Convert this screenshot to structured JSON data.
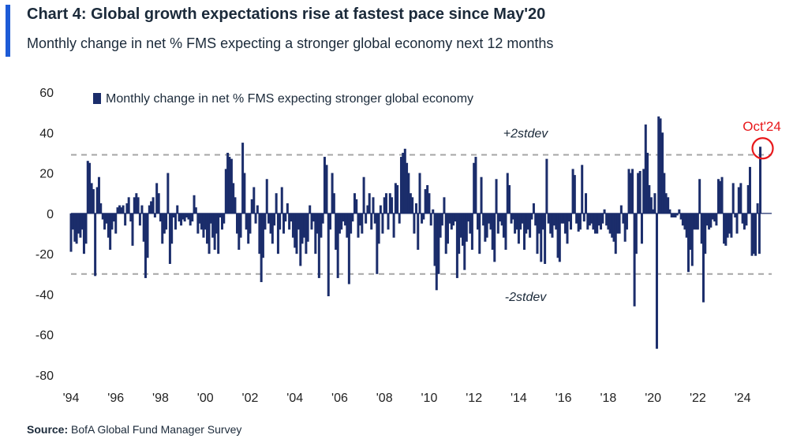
{
  "header": {
    "title": "Chart 4: Global growth expectations rise at fastest pace since May'20",
    "subtitle": "Monthly change in net % FMS expecting a stronger global economy next 12 months"
  },
  "footer": {
    "source_label": "Source:",
    "source_text": "BofA Global Fund Manager Survey"
  },
  "colors": {
    "bar": "#1b2d6b",
    "accent": "#1d5bd6",
    "highlight": "#e8181b",
    "band": "#a6a6a6"
  },
  "chart_data": {
    "type": "bar",
    "title": "Chart 4: Global growth expectations rise at fastest pace since May'20",
    "subtitle": "Monthly change in net % FMS expecting a stronger global economy next 12 months",
    "legend": {
      "entries": [
        "Monthly change in net % FMS expecting stronger global economy"
      ],
      "placement": "top-left"
    },
    "series": [
      {
        "name": "Monthly change in net % FMS expecting stronger global economy"
      }
    ],
    "ylim": [
      -80,
      60
    ],
    "yticks": [
      60,
      40,
      20,
      0,
      -20,
      -40,
      -60,
      -80
    ],
    "ytick_labels": [
      "60",
      "40",
      "20",
      "0",
      "-20",
      "-40",
      "-60",
      "-80"
    ],
    "xlim": [
      1994,
      2025.3
    ],
    "xticks": [
      1994,
      1996,
      1998,
      2000,
      2002,
      2004,
      2006,
      2008,
      2010,
      2012,
      2014,
      2016,
      2018,
      2020,
      2022,
      2024
    ],
    "xtick_labels": [
      "'94",
      "'96",
      "'98",
      "'00",
      "'02",
      "'04",
      "'06",
      "'08",
      "'10",
      "'12",
      "'14",
      "'16",
      "'18",
      "'20",
      "'22",
      "'24"
    ],
    "reference_lines": [
      {
        "label": "+2stdev",
        "value": 29
      },
      {
        "label": "-2stdev",
        "value": -30
      }
    ],
    "annotation": {
      "label": "Oct'24",
      "x": 2024.79,
      "y": 33
    },
    "grid": false,
    "points": [
      [
        1994.0,
        -19
      ],
      [
        1994.08,
        -8
      ],
      [
        1994.17,
        -14
      ],
      [
        1994.25,
        -15
      ],
      [
        1994.33,
        -10
      ],
      [
        1994.42,
        -12
      ],
      [
        1994.5,
        -8
      ],
      [
        1994.58,
        -20
      ],
      [
        1994.67,
        -15
      ],
      [
        1994.75,
        26
      ],
      [
        1994.83,
        25
      ],
      [
        1994.92,
        15
      ],
      [
        1995.0,
        12
      ],
      [
        1995.08,
        -31
      ],
      [
        1995.17,
        13
      ],
      [
        1995.25,
        18
      ],
      [
        1995.33,
        5
      ],
      [
        1995.42,
        -3
      ],
      [
        1995.5,
        -8
      ],
      [
        1995.58,
        -5
      ],
      [
        1995.67,
        -12
      ],
      [
        1995.75,
        -18
      ],
      [
        1995.83,
        -8
      ],
      [
        1995.92,
        -4
      ],
      [
        1996.0,
        -10
      ],
      [
        1996.08,
        3
      ],
      [
        1996.17,
        4
      ],
      [
        1996.25,
        3
      ],
      [
        1996.33,
        4
      ],
      [
        1996.42,
        -6
      ],
      [
        1996.5,
        5
      ],
      [
        1996.58,
        8
      ],
      [
        1996.67,
        -4
      ],
      [
        1996.75,
        -16
      ],
      [
        1996.83,
        8
      ],
      [
        1996.92,
        10
      ],
      [
        1997.0,
        8
      ],
      [
        1997.08,
        -6
      ],
      [
        1997.17,
        4
      ],
      [
        1997.25,
        -14
      ],
      [
        1997.33,
        -32
      ],
      [
        1997.42,
        -22
      ],
      [
        1997.5,
        4
      ],
      [
        1997.58,
        6
      ],
      [
        1997.67,
        8
      ],
      [
        1997.75,
        -2
      ],
      [
        1997.83,
        15
      ],
      [
        1997.92,
        10
      ],
      [
        1998.0,
        -4
      ],
      [
        1998.08,
        -15
      ],
      [
        1998.17,
        -10
      ],
      [
        1998.25,
        -8
      ],
      [
        1998.33,
        20
      ],
      [
        1998.42,
        -25
      ],
      [
        1998.5,
        -15
      ],
      [
        1998.58,
        -2
      ],
      [
        1998.67,
        -8
      ],
      [
        1998.75,
        4
      ],
      [
        1998.83,
        -4
      ],
      [
        1998.92,
        -6
      ],
      [
        1999.0,
        -3
      ],
      [
        1999.08,
        -4
      ],
      [
        1999.17,
        -2
      ],
      [
        1999.25,
        -3
      ],
      [
        1999.33,
        -6
      ],
      [
        1999.42,
        -4
      ],
      [
        1999.5,
        9
      ],
      [
        1999.58,
        3
      ],
      [
        1999.67,
        -10
      ],
      [
        1999.75,
        -5
      ],
      [
        1999.83,
        -8
      ],
      [
        1999.92,
        -12
      ],
      [
        2000.0,
        -8
      ],
      [
        2000.08,
        -15
      ],
      [
        2000.17,
        -20
      ],
      [
        2000.25,
        -5
      ],
      [
        2000.33,
        -12
      ],
      [
        2000.42,
        -18
      ],
      [
        2000.5,
        -10
      ],
      [
        2000.58,
        -20
      ],
      [
        2000.67,
        -2
      ],
      [
        2000.75,
        -8
      ],
      [
        2000.83,
        -5
      ],
      [
        2000.92,
        22
      ],
      [
        2001.0,
        30
      ],
      [
        2001.08,
        28
      ],
      [
        2001.17,
        27
      ],
      [
        2001.25,
        15
      ],
      [
        2001.33,
        8
      ],
      [
        2001.42,
        -10
      ],
      [
        2001.5,
        -18
      ],
      [
        2001.58,
        -12
      ],
      [
        2001.67,
        35
      ],
      [
        2001.75,
        20
      ],
      [
        2001.83,
        -8
      ],
      [
        2001.92,
        -15
      ],
      [
        2002.0,
        -10
      ],
      [
        2002.08,
        7
      ],
      [
        2002.17,
        13
      ],
      [
        2002.25,
        -5
      ],
      [
        2002.33,
        4
      ],
      [
        2002.42,
        -20
      ],
      [
        2002.5,
        -34
      ],
      [
        2002.58,
        -22
      ],
      [
        2002.67,
        -8
      ],
      [
        2002.75,
        17
      ],
      [
        2002.83,
        -5
      ],
      [
        2002.92,
        -10
      ],
      [
        2003.0,
        -15
      ],
      [
        2003.08,
        -6
      ],
      [
        2003.17,
        10
      ],
      [
        2003.25,
        -20
      ],
      [
        2003.33,
        -8
      ],
      [
        2003.42,
        13
      ],
      [
        2003.5,
        -10
      ],
      [
        2003.58,
        -4
      ],
      [
        2003.67,
        5
      ],
      [
        2003.75,
        -8
      ],
      [
        2003.83,
        -4
      ],
      [
        2003.92,
        -12
      ],
      [
        2004.0,
        -17
      ],
      [
        2004.08,
        -20
      ],
      [
        2004.17,
        -8
      ],
      [
        2004.25,
        -26
      ],
      [
        2004.33,
        -15
      ],
      [
        2004.42,
        -12
      ],
      [
        2004.5,
        -20
      ],
      [
        2004.58,
        -14
      ],
      [
        2004.67,
        4
      ],
      [
        2004.75,
        -8
      ],
      [
        2004.83,
        -4
      ],
      [
        2004.92,
        -20
      ],
      [
        2005.0,
        -10
      ],
      [
        2005.08,
        -32
      ],
      [
        2005.17,
        -12
      ],
      [
        2005.25,
        -5
      ],
      [
        2005.33,
        28
      ],
      [
        2005.42,
        24
      ],
      [
        2005.5,
        -41
      ],
      [
        2005.58,
        -8
      ],
      [
        2005.67,
        20
      ],
      [
        2005.75,
        10
      ],
      [
        2005.83,
        -18
      ],
      [
        2005.92,
        -32
      ],
      [
        2006.0,
        -10
      ],
      [
        2006.08,
        -8
      ],
      [
        2006.17,
        -4
      ],
      [
        2006.25,
        -6
      ],
      [
        2006.33,
        -12
      ],
      [
        2006.42,
        -35
      ],
      [
        2006.5,
        -10
      ],
      [
        2006.58,
        -4
      ],
      [
        2006.67,
        10
      ],
      [
        2006.75,
        7
      ],
      [
        2006.83,
        -12
      ],
      [
        2006.92,
        -6
      ],
      [
        2007.0,
        -10
      ],
      [
        2007.08,
        18
      ],
      [
        2007.17,
        -5
      ],
      [
        2007.25,
        4
      ],
      [
        2007.33,
        10
      ],
      [
        2007.42,
        -8
      ],
      [
        2007.5,
        8
      ],
      [
        2007.58,
        -5
      ],
      [
        2007.67,
        -30
      ],
      [
        2007.75,
        -15
      ],
      [
        2007.83,
        4
      ],
      [
        2007.92,
        -10
      ],
      [
        2008.0,
        8
      ],
      [
        2008.08,
        10
      ],
      [
        2008.17,
        -8
      ],
      [
        2008.25,
        10
      ],
      [
        2008.33,
        8
      ],
      [
        2008.42,
        -12
      ],
      [
        2008.5,
        15
      ],
      [
        2008.58,
        14
      ],
      [
        2008.67,
        -5
      ],
      [
        2008.75,
        28
      ],
      [
        2008.83,
        30
      ],
      [
        2008.92,
        32
      ],
      [
        2009.0,
        25
      ],
      [
        2009.08,
        20
      ],
      [
        2009.17,
        10
      ],
      [
        2009.25,
        8
      ],
      [
        2009.33,
        -10
      ],
      [
        2009.42,
        5
      ],
      [
        2009.5,
        -18
      ],
      [
        2009.58,
        20
      ],
      [
        2009.67,
        -5
      ],
      [
        2009.75,
        -3
      ],
      [
        2009.83,
        12
      ],
      [
        2009.92,
        14
      ],
      [
        2010.0,
        10
      ],
      [
        2010.08,
        -6
      ],
      [
        2010.17,
        2
      ],
      [
        2010.25,
        -26
      ],
      [
        2010.33,
        -38
      ],
      [
        2010.42,
        -30
      ],
      [
        2010.5,
        -12
      ],
      [
        2010.58,
        -6
      ],
      [
        2010.67,
        8
      ],
      [
        2010.75,
        -20
      ],
      [
        2010.83,
        -15
      ],
      [
        2010.92,
        -5
      ],
      [
        2011.0,
        -8
      ],
      [
        2011.08,
        -6
      ],
      [
        2011.17,
        -4
      ],
      [
        2011.25,
        -32
      ],
      [
        2011.33,
        -20
      ],
      [
        2011.42,
        -12
      ],
      [
        2011.5,
        -16
      ],
      [
        2011.58,
        -28
      ],
      [
        2011.67,
        -14
      ],
      [
        2011.75,
        -4
      ],
      [
        2011.83,
        -10
      ],
      [
        2011.92,
        -18
      ],
      [
        2012.0,
        25
      ],
      [
        2012.08,
        28
      ],
      [
        2012.17,
        -8
      ],
      [
        2012.25,
        -20
      ],
      [
        2012.33,
        18
      ],
      [
        2012.42,
        -6
      ],
      [
        2012.5,
        -14
      ],
      [
        2012.58,
        -12
      ],
      [
        2012.67,
        -5
      ],
      [
        2012.75,
        -8
      ],
      [
        2012.83,
        -18
      ],
      [
        2012.92,
        -24
      ],
      [
        2013.0,
        17
      ],
      [
        2013.08,
        -10
      ],
      [
        2013.17,
        -4
      ],
      [
        2013.25,
        -6
      ],
      [
        2013.33,
        -12
      ],
      [
        2013.42,
        -18
      ],
      [
        2013.5,
        20
      ],
      [
        2013.58,
        14
      ],
      [
        2013.67,
        -5
      ],
      [
        2013.75,
        -3
      ],
      [
        2013.83,
        -10
      ],
      [
        2013.92,
        -8
      ],
      [
        2014.0,
        -15
      ],
      [
        2014.08,
        -8
      ],
      [
        2014.17,
        -5
      ],
      [
        2014.25,
        -18
      ],
      [
        2014.33,
        -10
      ],
      [
        2014.42,
        -8
      ],
      [
        2014.5,
        -12
      ],
      [
        2014.58,
        -3
      ],
      [
        2014.67,
        5
      ],
      [
        2014.75,
        -6
      ],
      [
        2014.83,
        -20
      ],
      [
        2014.92,
        -10
      ],
      [
        2015.0,
        -24
      ],
      [
        2015.08,
        -8
      ],
      [
        2015.17,
        -25
      ],
      [
        2015.25,
        27
      ],
      [
        2015.33,
        -5
      ],
      [
        2015.42,
        -10
      ],
      [
        2015.5,
        -12
      ],
      [
        2015.58,
        -6
      ],
      [
        2015.67,
        -8
      ],
      [
        2015.75,
        -22
      ],
      [
        2015.83,
        -24
      ],
      [
        2015.92,
        -5
      ],
      [
        2016.0,
        -5
      ],
      [
        2016.08,
        -10
      ],
      [
        2016.17,
        -15
      ],
      [
        2016.25,
        -4
      ],
      [
        2016.33,
        -8
      ],
      [
        2016.42,
        22
      ],
      [
        2016.5,
        19
      ],
      [
        2016.58,
        -5
      ],
      [
        2016.67,
        -9
      ],
      [
        2016.75,
        -8
      ],
      [
        2016.83,
        24
      ],
      [
        2016.92,
        -4
      ],
      [
        2017.0,
        10
      ],
      [
        2017.08,
        -8
      ],
      [
        2017.17,
        -6
      ],
      [
        2017.25,
        -5
      ],
      [
        2017.33,
        -8
      ],
      [
        2017.42,
        -10
      ],
      [
        2017.5,
        -10
      ],
      [
        2017.58,
        -6
      ],
      [
        2017.67,
        -8
      ],
      [
        2017.75,
        -5
      ],
      [
        2017.83,
        2
      ],
      [
        2017.92,
        -6
      ],
      [
        2018.0,
        -8
      ],
      [
        2018.08,
        -10
      ],
      [
        2018.17,
        -12
      ],
      [
        2018.25,
        -14
      ],
      [
        2018.33,
        -20
      ],
      [
        2018.42,
        -10
      ],
      [
        2018.5,
        -10
      ],
      [
        2018.58,
        4
      ],
      [
        2018.67,
        -5
      ],
      [
        2018.75,
        -14
      ],
      [
        2018.83,
        -8
      ],
      [
        2018.92,
        22
      ],
      [
        2019.0,
        20
      ],
      [
        2019.08,
        22
      ],
      [
        2019.17,
        -46
      ],
      [
        2019.25,
        -20
      ],
      [
        2019.33,
        20
      ],
      [
        2019.42,
        21
      ],
      [
        2019.5,
        -15
      ],
      [
        2019.58,
        22
      ],
      [
        2019.67,
        44
      ],
      [
        2019.75,
        30
      ],
      [
        2019.83,
        14
      ],
      [
        2019.92,
        8
      ],
      [
        2020.0,
        2
      ],
      [
        2020.08,
        10
      ],
      [
        2020.17,
        -67
      ],
      [
        2020.25,
        48
      ],
      [
        2020.33,
        47
      ],
      [
        2020.42,
        40
      ],
      [
        2020.5,
        20
      ],
      [
        2020.58,
        10
      ],
      [
        2020.67,
        8
      ],
      [
        2020.75,
        2
      ],
      [
        2020.83,
        -2
      ],
      [
        2020.92,
        -2
      ],
      [
        2021.0,
        -2
      ],
      [
        2021.08,
        -1
      ],
      [
        2021.17,
        2
      ],
      [
        2021.25,
        -3
      ],
      [
        2021.33,
        -6
      ],
      [
        2021.42,
        -8
      ],
      [
        2021.5,
        -12
      ],
      [
        2021.58,
        -29
      ],
      [
        2021.67,
        -18
      ],
      [
        2021.75,
        -26
      ],
      [
        2021.83,
        -8
      ],
      [
        2021.92,
        -8
      ],
      [
        2022.0,
        -8
      ],
      [
        2022.08,
        17
      ],
      [
        2022.17,
        -15
      ],
      [
        2022.25,
        -44
      ],
      [
        2022.33,
        -20
      ],
      [
        2022.42,
        -6
      ],
      [
        2022.5,
        -8
      ],
      [
        2022.58,
        -7
      ],
      [
        2022.67,
        -3
      ],
      [
        2022.75,
        -4
      ],
      [
        2022.83,
        -6
      ],
      [
        2022.92,
        17
      ],
      [
        2023.0,
        16
      ],
      [
        2023.08,
        18
      ],
      [
        2023.17,
        -15
      ],
      [
        2023.25,
        -16
      ],
      [
        2023.33,
        -12
      ],
      [
        2023.42,
        -10
      ],
      [
        2023.5,
        -12
      ],
      [
        2023.58,
        15
      ],
      [
        2023.67,
        -2
      ],
      [
        2023.75,
        -10
      ],
      [
        2023.83,
        13
      ],
      [
        2023.92,
        15
      ],
      [
        2024.0,
        -5
      ],
      [
        2024.08,
        -8
      ],
      [
        2024.17,
        -6
      ],
      [
        2024.25,
        14
      ],
      [
        2024.33,
        23
      ],
      [
        2024.42,
        -21
      ],
      [
        2024.5,
        -20
      ],
      [
        2024.58,
        -21
      ],
      [
        2024.67,
        5
      ],
      [
        2024.75,
        -20
      ],
      [
        2024.79,
        33
      ]
    ]
  }
}
